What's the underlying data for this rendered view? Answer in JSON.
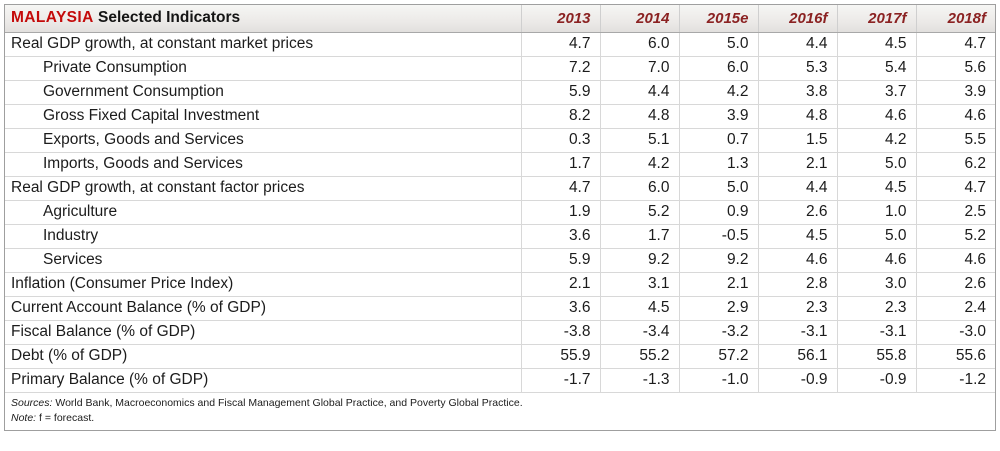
{
  "chart_data": {
    "type": "table",
    "title": {
      "country": "MALAYSIA",
      "subtitle": "Selected Indicators"
    },
    "columns": [
      "2013",
      "2014",
      "2015e",
      "2016f",
      "2017f",
      "2018f"
    ],
    "rows": [
      {
        "label": "Real GDP growth, at constant market prices",
        "indent": false,
        "values": [
          4.7,
          6.0,
          5.0,
          4.4,
          4.5,
          4.7
        ]
      },
      {
        "label": "Private Consumption",
        "indent": true,
        "values": [
          7.2,
          7.0,
          6.0,
          5.3,
          5.4,
          5.6
        ]
      },
      {
        "label": "Government Consumption",
        "indent": true,
        "values": [
          5.9,
          4.4,
          4.2,
          3.8,
          3.7,
          3.9
        ]
      },
      {
        "label": "Gross Fixed Capital Investment",
        "indent": true,
        "values": [
          8.2,
          4.8,
          3.9,
          4.8,
          4.6,
          4.6
        ]
      },
      {
        "label": "Exports, Goods and Services",
        "indent": true,
        "values": [
          0.3,
          5.1,
          0.7,
          1.5,
          4.2,
          5.5
        ]
      },
      {
        "label": "Imports, Goods and Services",
        "indent": true,
        "values": [
          1.7,
          4.2,
          1.3,
          2.1,
          5.0,
          6.2
        ]
      },
      {
        "label": "Real GDP growth, at constant factor prices",
        "indent": false,
        "values": [
          4.7,
          6.0,
          5.0,
          4.4,
          4.5,
          4.7
        ]
      },
      {
        "label": "Agriculture",
        "indent": true,
        "values": [
          1.9,
          5.2,
          0.9,
          2.6,
          1.0,
          2.5
        ]
      },
      {
        "label": "Industry",
        "indent": true,
        "values": [
          3.6,
          1.7,
          -0.5,
          4.5,
          5.0,
          5.2
        ]
      },
      {
        "label": "Services",
        "indent": true,
        "values": [
          5.9,
          9.2,
          9.2,
          4.6,
          4.6,
          4.6
        ]
      },
      {
        "label": "Inflation (Consumer Price Index)",
        "indent": false,
        "values": [
          2.1,
          3.1,
          2.1,
          2.8,
          3.0,
          2.6
        ]
      },
      {
        "label": "Current Account Balance (% of GDP)",
        "indent": false,
        "values": [
          3.6,
          4.5,
          2.9,
          2.3,
          2.3,
          2.4
        ]
      },
      {
        "label": "Fiscal Balance (% of GDP)",
        "indent": false,
        "values": [
          -3.8,
          -3.4,
          -3.2,
          -3.1,
          -3.1,
          -3.0
        ]
      },
      {
        "label": "Debt (% of GDP)",
        "indent": false,
        "values": [
          55.9,
          55.2,
          57.2,
          56.1,
          55.8,
          55.6
        ]
      },
      {
        "label": "Primary Balance (% of GDP)",
        "indent": false,
        "values": [
          -1.7,
          -1.3,
          -1.0,
          -0.9,
          -0.9,
          -1.2
        ]
      }
    ]
  },
  "footer": {
    "sources_label": "Sources:",
    "sources_text": "World Bank, Macroeconomics and Fiscal Management Global Practice, and Poverty Global Practice.",
    "note_label": "Note:",
    "note_text": "f = forecast."
  },
  "colors": {
    "country_red": "#c40a0a",
    "year_header_red": "#8b2222",
    "header_bg": "#ebe9e7",
    "outer_border": "#9f9f9f",
    "grid_line": "#d8d8d8",
    "text": "#1c1c1c"
  }
}
